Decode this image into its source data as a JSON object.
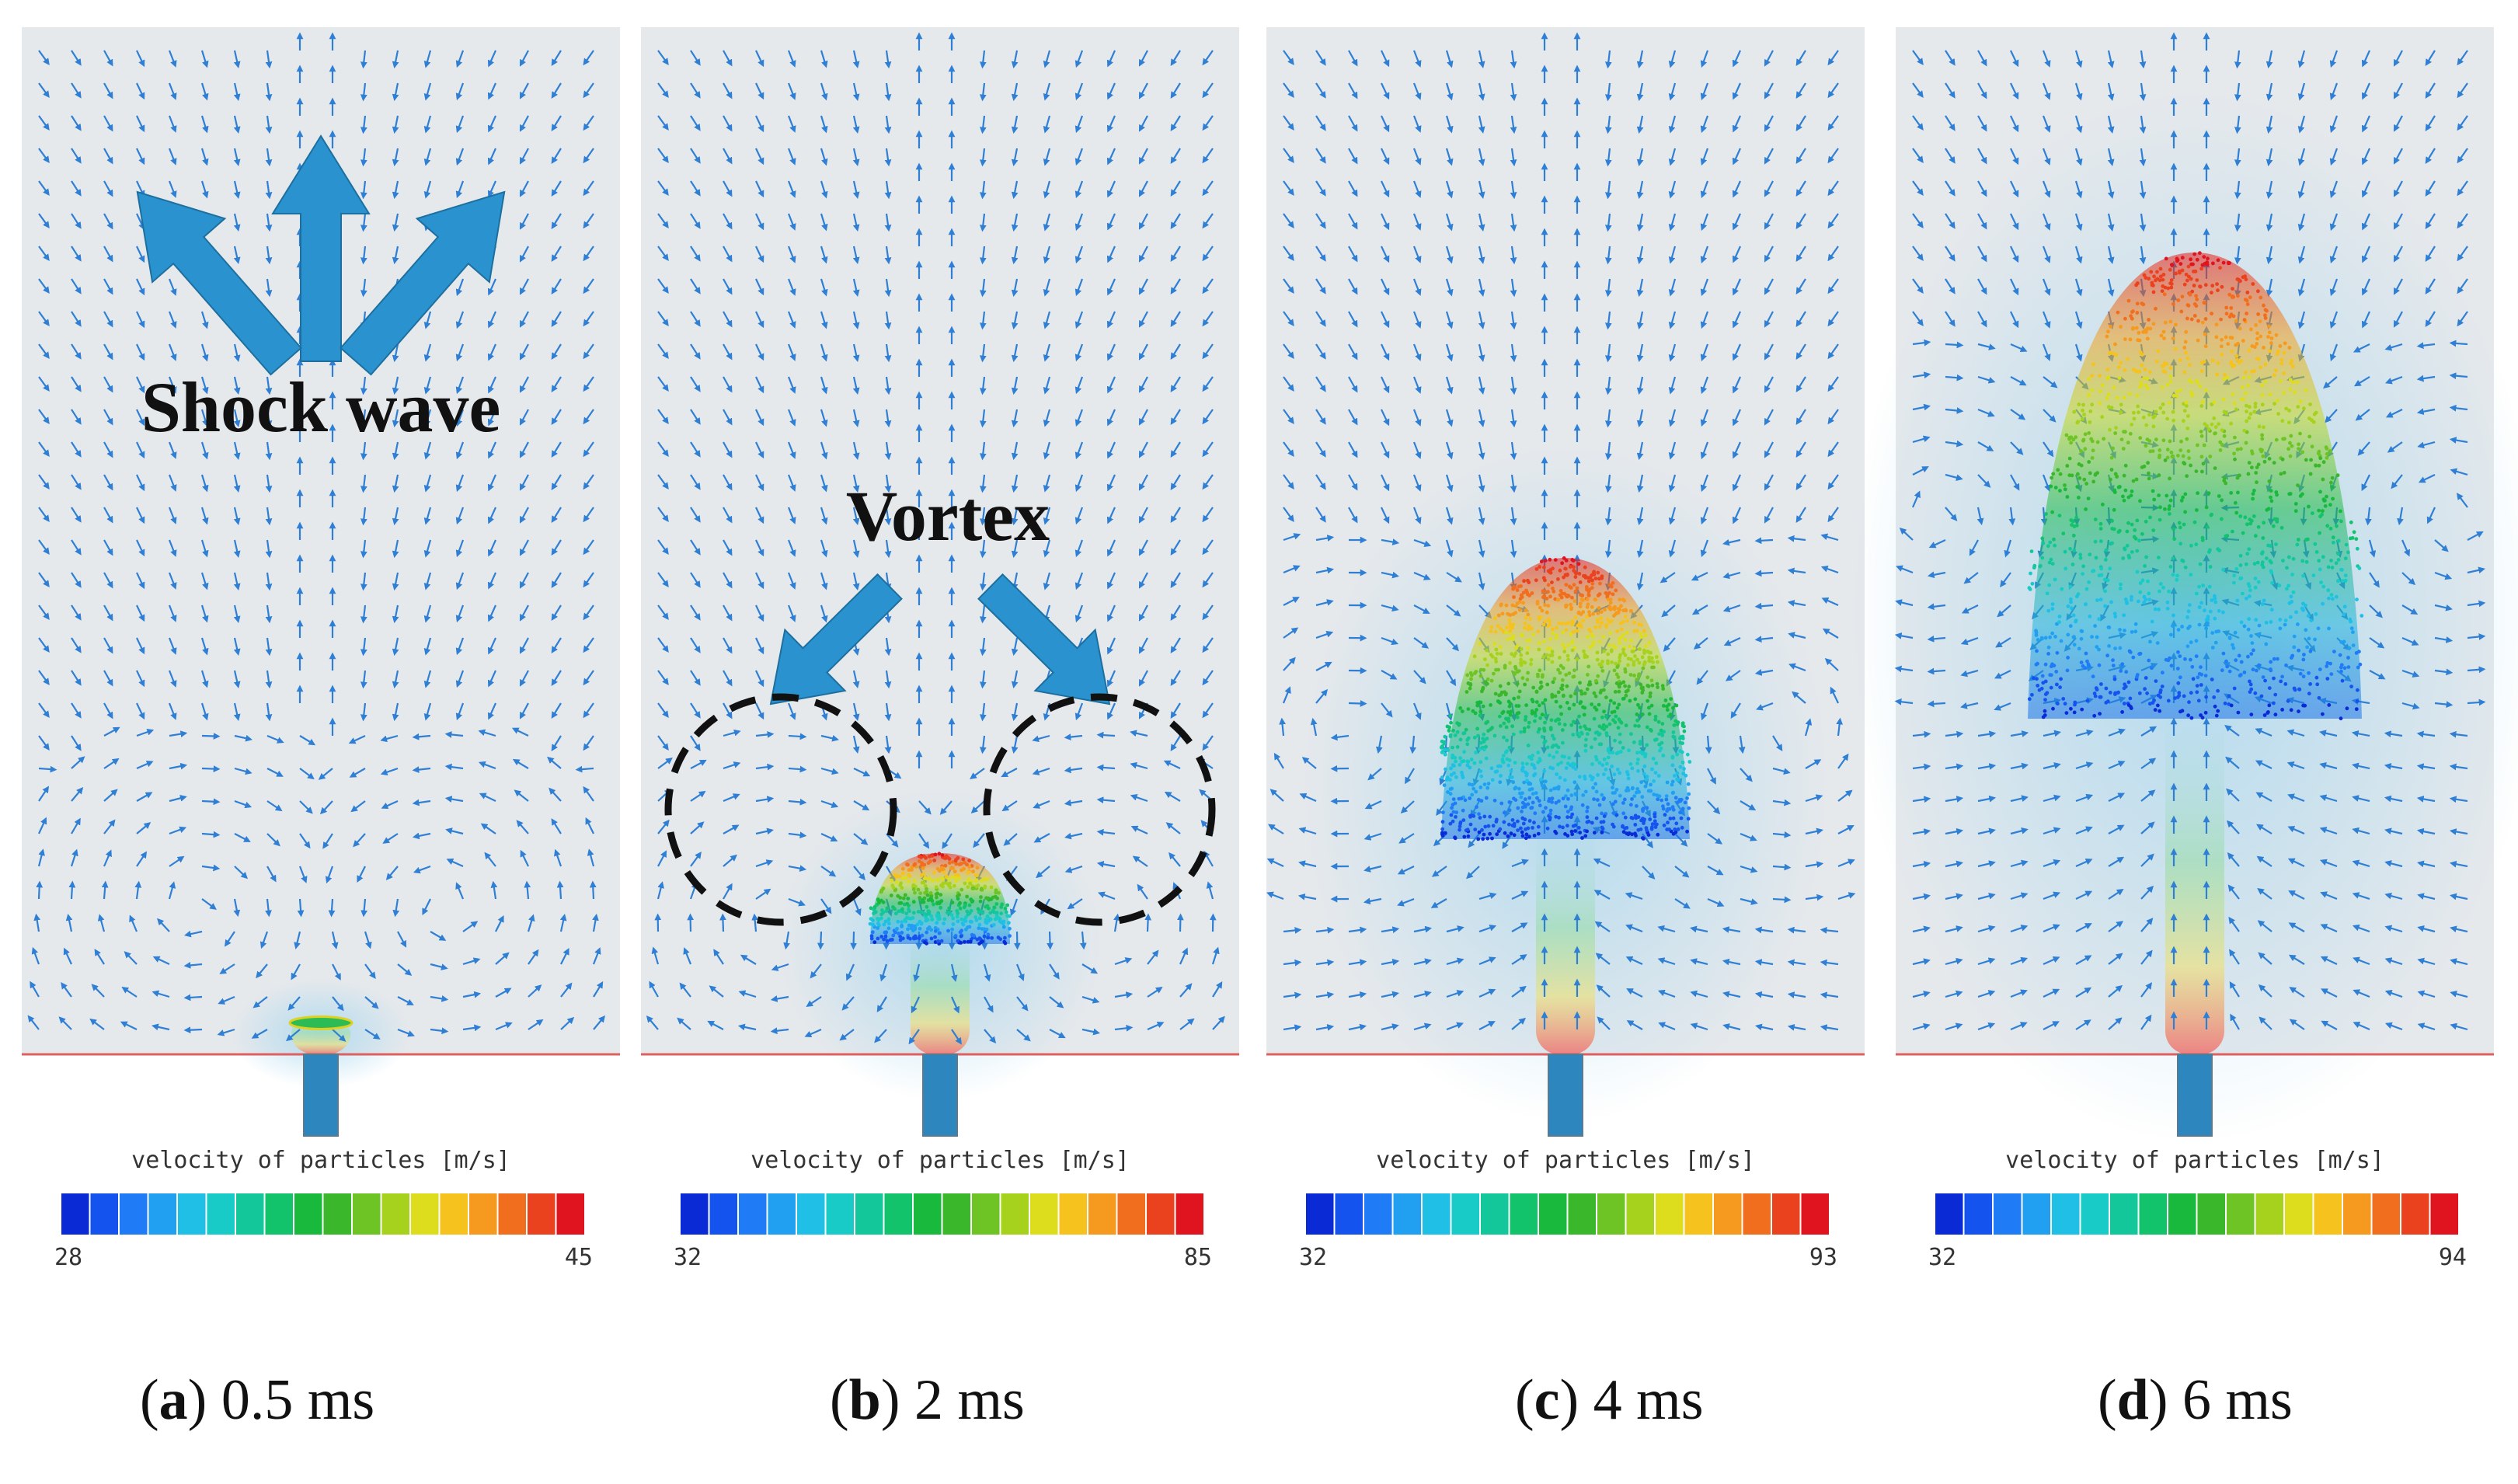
{
  "figure": {
    "panels": [
      {
        "letter": "a",
        "time": "0.5 ms",
        "legend_title": "velocity of particles [m/s]",
        "scale_min": "28",
        "scale_max": "45",
        "annotation": "Shock wave",
        "particle_cloud": "thin-disc-at-nozzle",
        "vortex_markers": false
      },
      {
        "letter": "b",
        "time": "2 ms",
        "legend_title": "velocity of particles [m/s]",
        "scale_min": "32",
        "scale_max": "85",
        "annotation": "Vortex",
        "particle_cloud": "small-dome",
        "vortex_markers": true
      },
      {
        "letter": "c",
        "time": "4 ms",
        "legend_title": "velocity of particles [m/s]",
        "scale_min": "32",
        "scale_max": "93",
        "annotation": "",
        "particle_cloud": "medium-mushroom",
        "vortex_markers": false
      },
      {
        "letter": "d",
        "time": "6 ms",
        "legend_title": "velocity of particles [m/s]",
        "scale_min": "32",
        "scale_max": "94",
        "annotation": "",
        "particle_cloud": "large-mushroom",
        "vortex_markers": false
      }
    ],
    "colors": {
      "background": "#e6e9ec",
      "vector": "#2f7fd4",
      "annotation_arrow": "#2a93cf",
      "baseline": "#e06060",
      "nozzle": "#2d86bd",
      "colormap": [
        "#0a2ad6",
        "#1553ee",
        "#1f7cf6",
        "#21a0f2",
        "#1fbfe6",
        "#18cbc6",
        "#13c79b",
        "#12c36c",
        "#19b93e",
        "#3ab72b",
        "#6ec424",
        "#a6d21e",
        "#dddd1e",
        "#f5c21e",
        "#f59a1e",
        "#f06e1e",
        "#ea421e",
        "#e0141e"
      ]
    }
  }
}
